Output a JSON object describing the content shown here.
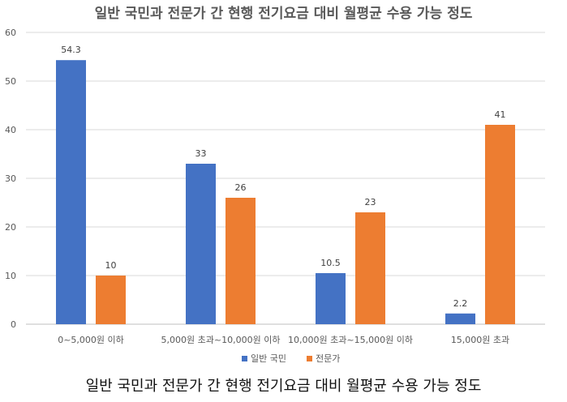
{
  "chart_data": {
    "type": "bar",
    "title": "일반 국민과 전문가 간 현행 전기요금 대비 월평균 수용 가능 정도",
    "categories": [
      "0~5,000원 이하",
      "5,000원 초과~10,000원 이하",
      "10,000원 초과~15,000원 이하",
      "15,000원 초과"
    ],
    "series": [
      {
        "name": "일반 국민",
        "values": [
          54.3,
          33,
          10.5,
          2.2
        ],
        "color": "#4472C4"
      },
      {
        "name": "전문가",
        "values": [
          10,
          26,
          23,
          41
        ],
        "color": "#ED7D31"
      }
    ],
    "ylim": [
      0,
      60
    ],
    "yticks": [
      0,
      10,
      20,
      30,
      40,
      50,
      60
    ],
    "grid": true,
    "legend_position": "bottom"
  },
  "caption": "일반 국민과 전문가 간 현행 전기요금 대비 월평균 수용 가능 정도"
}
